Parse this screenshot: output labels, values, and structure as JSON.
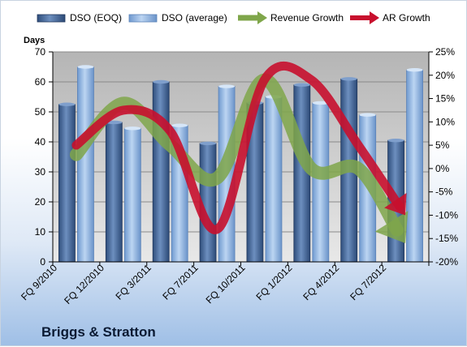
{
  "company_label": "Briggs & Stratton",
  "chart_data": {
    "type": "bar",
    "categories": [
      "FQ 9/2010",
      "FQ 12/2010",
      "FQ 3/2011",
      "FQ 7/2011",
      "FQ 10/2011",
      "FQ 1/2012",
      "FQ 4/2012",
      "FQ 7/2012"
    ],
    "series": [
      {
        "name": "DSO (EOQ)",
        "kind": "bar",
        "axis": "left",
        "color": "#4f6f9f",
        "values": [
          52.5,
          46.5,
          60,
          39.5,
          53,
          59,
          61,
          40.5
        ]
      },
      {
        "name": "DSO (average)",
        "kind": "bar",
        "axis": "left",
        "color": "#8fb4e3",
        "values": [
          65,
          44.5,
          45.5,
          58.5,
          55,
          53,
          49,
          64
        ]
      },
      {
        "name": "Revenue Growth",
        "kind": "line",
        "axis": "right",
        "color": "#7fa64a",
        "values": [
          3,
          14,
          5,
          -2,
          19,
          0,
          0,
          -16
        ]
      },
      {
        "name": "AR Growth",
        "kind": "line",
        "axis": "right",
        "color": "#c8102e",
        "values": [
          5,
          12.5,
          8,
          -13,
          19,
          19,
          5,
          -10
        ]
      }
    ],
    "ylabel": "Days",
    "ylim": [
      0,
      70
    ],
    "yticks": [
      "0",
      "10",
      "20",
      "30",
      "40",
      "50",
      "60",
      "70"
    ],
    "y2lim": [
      -20,
      25
    ],
    "y2ticks": [
      "-20%",
      "-15%",
      "-10%",
      "-5%",
      "0%",
      "5%",
      "10%",
      "15%",
      "20%",
      "25%"
    ],
    "grid": true,
    "legend_position": "top"
  }
}
